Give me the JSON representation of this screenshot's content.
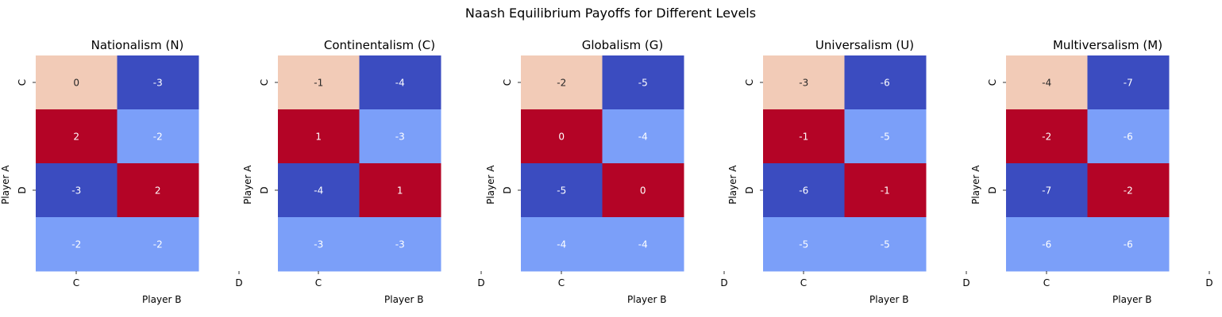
{
  "figure_title": "Naash Equilibrium Payoffs for Different Levels",
  "chart_data": {
    "type": "heatmap",
    "colormap": "coolwarm",
    "cmap_colors": {
      "strong_blue": "#3b4cc0",
      "light_blue": "#7b9ff9",
      "light_peach": "#f2cbb7",
      "strong_red": "#b40426"
    },
    "colorbar": false,
    "xlabel": "Player B",
    "ylabel": "Player A",
    "x_tick_labels": [
      "C",
      "D"
    ],
    "y_tick_labels": [
      "C",
      "D"
    ],
    "panels": [
      {
        "title": "Nationalism (N)",
        "values": [
          [
            0,
            -3
          ],
          [
            2,
            -2
          ],
          [
            -3,
            2
          ],
          [
            -2,
            -2
          ]
        ]
      },
      {
        "title": "Continentalism (C)",
        "values": [
          [
            -1,
            -4
          ],
          [
            1,
            -3
          ],
          [
            -4,
            1
          ],
          [
            -3,
            -3
          ]
        ]
      },
      {
        "title": "Globalism (G)",
        "values": [
          [
            -2,
            -5
          ],
          [
            0,
            -4
          ],
          [
            -5,
            0
          ],
          [
            -4,
            -4
          ]
        ]
      },
      {
        "title": "Universalism (U)",
        "values": [
          [
            -3,
            -6
          ],
          [
            -1,
            -5
          ],
          [
            -6,
            -1
          ],
          [
            -5,
            -5
          ]
        ]
      },
      {
        "title": "Multiversalism (M)",
        "values": [
          [
            -4,
            -7
          ],
          [
            -2,
            -6
          ],
          [
            -7,
            -2
          ],
          [
            -6,
            -6
          ]
        ]
      }
    ]
  }
}
